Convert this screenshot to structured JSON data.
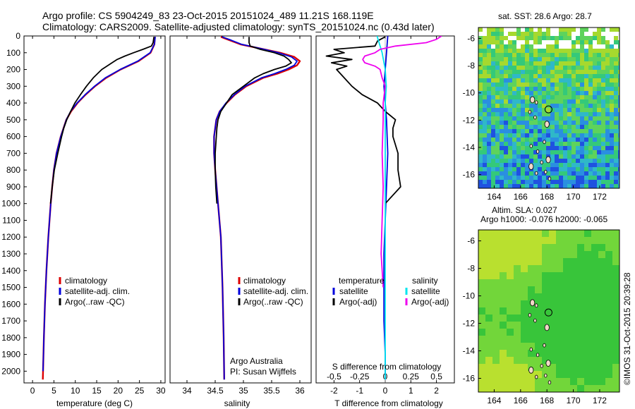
{
  "title_line1": "Argo profile: CS 5904249_83 23-Oct-2015 20151024_489 11.21S 168.119E",
  "title_line2": "Climatology: CARS2009. Satellite-adjusted climatology: synTS_20151024.nc (0.43d later)",
  "credit_line1": "Argo Australia",
  "credit_line2": "PI: Susan Wijffels",
  "watermark": "©IMOS 31-Oct-2015 20:39:28",
  "colors": {
    "climatology": "#dd0000",
    "satellite": "#0000dd",
    "argo": "#000000",
    "sat_salinity": "#00e5ee",
    "argo_adj_salinity": "#ee00ee"
  },
  "chart_data": [
    {
      "type": "line",
      "id": "temperature",
      "xlabel": "temperature (deg C)",
      "ylabel": "",
      "xlim": [
        -2,
        31
      ],
      "ylim": [
        0,
        2070
      ],
      "y_inverted": true,
      "xticks": [
        0,
        5,
        10,
        15,
        20,
        25,
        30
      ],
      "yticks": [
        0,
        100,
        200,
        300,
        400,
        500,
        600,
        700,
        800,
        900,
        1000,
        1100,
        1200,
        1300,
        1400,
        1500,
        1600,
        1700,
        1800,
        1900,
        2000
      ],
      "legend": [
        "climatology",
        "satellite-adj. clim.",
        "Argo(..raw -QC)"
      ],
      "series": [
        {
          "name": "climatology",
          "depth": [
            5,
            50,
            100,
            150,
            200,
            250,
            300,
            350,
            400,
            450,
            500,
            600,
            700,
            800,
            900,
            1000,
            1200,
            1400,
            1600,
            1800,
            2000,
            2050
          ],
          "values": [
            28.6,
            28.5,
            27.6,
            24.8,
            20.6,
            17.2,
            14.6,
            12.4,
            10.5,
            9.0,
            7.9,
            6.6,
            5.6,
            5.0,
            4.6,
            4.25,
            3.7,
            3.25,
            2.9,
            2.65,
            2.45,
            2.4
          ]
        },
        {
          "name": "satellite-adj. clim.",
          "depth": [
            5,
            50,
            100,
            150,
            200,
            250,
            300,
            350,
            400,
            450,
            500,
            600,
            700,
            800,
            900,
            1000,
            1200,
            1400,
            1600,
            1800,
            2000
          ],
          "values": [
            28.7,
            28.5,
            27.5,
            24.6,
            20.5,
            17.0,
            14.5,
            12.3,
            10.4,
            8.9,
            7.9,
            6.6,
            5.6,
            5.0,
            4.6,
            4.25,
            3.7,
            3.25,
            2.9,
            2.65,
            2.45
          ]
        },
        {
          "name": "Argo(..raw -QC)",
          "depth": [
            5,
            40,
            60,
            80,
            100,
            120,
            140,
            160,
            180,
            200,
            250,
            300,
            350,
            400,
            450,
            500,
            550,
            600,
            700,
            800,
            900,
            1000
          ],
          "values": [
            28.4,
            28.2,
            27.8,
            25.8,
            23.6,
            21.6,
            19.8,
            18.6,
            17.4,
            16.2,
            14.2,
            12.6,
            11.2,
            9.9,
            8.9,
            8.0,
            7.3,
            6.8,
            5.9,
            5.1,
            4.6,
            4.2
          ]
        }
      ]
    },
    {
      "type": "line",
      "id": "salinity",
      "xlabel": "salinity",
      "ylabel": "",
      "xlim": [
        33.7,
        36.2
      ],
      "ylim": [
        0,
        2070
      ],
      "y_inverted": true,
      "xticks": [
        34,
        34.5,
        35,
        35.5,
        36
      ],
      "legend": [
        "climatology",
        "satellite-adj. clim.",
        "Argo(..raw -QC)"
      ],
      "series": [
        {
          "name": "climatology",
          "depth": [
            5,
            25,
            50,
            75,
            100,
            125,
            150,
            175,
            200,
            225,
            250,
            300,
            350,
            400,
            450,
            500,
            600,
            700,
            800,
            1000,
            1200,
            1500,
            1800,
            2050
          ],
          "values": [
            34.6,
            34.75,
            34.95,
            35.3,
            35.65,
            35.9,
            36.0,
            35.95,
            35.8,
            35.6,
            35.35,
            35.05,
            34.85,
            34.7,
            34.58,
            34.52,
            34.48,
            34.48,
            34.5,
            34.55,
            34.6,
            34.63,
            34.65,
            34.66
          ]
        },
        {
          "name": "satellite-adj. clim.",
          "depth": [
            5,
            25,
            50,
            75,
            100,
            125,
            150,
            175,
            200,
            225,
            250,
            300,
            350,
            400,
            450,
            500,
            600,
            700,
            800,
            1000,
            1200,
            1500,
            1800,
            2050
          ],
          "values": [
            34.62,
            34.78,
            34.97,
            35.3,
            35.62,
            35.85,
            35.95,
            35.9,
            35.75,
            35.55,
            35.32,
            35.03,
            34.84,
            34.69,
            34.58,
            34.52,
            34.48,
            34.48,
            34.5,
            34.55,
            34.6,
            34.63,
            34.65,
            34.66
          ]
        },
        {
          "name": "Argo(..raw -QC)",
          "depth": [
            5,
            40,
            60,
            80,
            100,
            120,
            140,
            160,
            180,
            200,
            225,
            250,
            275,
            300,
            350,
            400,
            450,
            500,
            550,
            600,
            700,
            800,
            900,
            1000
          ],
          "values": [
            35.1,
            35.1,
            35.12,
            35.3,
            35.55,
            35.72,
            35.8,
            35.85,
            35.75,
            35.55,
            35.35,
            35.2,
            35.1,
            35.0,
            34.8,
            34.7,
            34.6,
            34.55,
            34.53,
            34.52,
            34.5,
            34.5,
            34.51,
            34.53
          ]
        }
      ]
    },
    {
      "type": "line",
      "id": "differences",
      "xlabel": "T difference from climatology",
      "top_xlabel": "S difference from climatology",
      "xlim": [
        -2.7,
        2.7
      ],
      "ylim": [
        0,
        2070
      ],
      "y_inverted": true,
      "xticks": [
        -2,
        -1,
        0,
        1,
        2
      ],
      "top_xticks": [
        "-0.5",
        "-0.25",
        "0",
        "0.25",
        "0.5"
      ],
      "legend_temperature_header": "temperature",
      "legend_salinity_header": "salinity",
      "legend": [
        "satellite",
        "Argo(-adj)",
        "satellite",
        "Argo(-adj)"
      ],
      "series": [
        {
          "name": "satellite",
          "variable": "temperature",
          "depth": [
            0,
            100,
            200,
            300,
            400,
            500,
            700,
            900,
            1100,
            1300,
            1500,
            1700,
            1900,
            2050
          ],
          "values": [
            0.1,
            0.05,
            0.0,
            -0.05,
            0.0,
            0.05,
            0.1,
            0.05,
            0.0,
            -0.05,
            -0.05,
            -0.05,
            0.0,
            0.0
          ]
        },
        {
          "name": "Argo(-adj)",
          "variable": "temperature",
          "depth": [
            5,
            30,
            60,
            80,
            100,
            120,
            140,
            160,
            180,
            200,
            250,
            300,
            350,
            400,
            450,
            500,
            550,
            600,
            700,
            800,
            900,
            1000
          ],
          "values": [
            0.0,
            -0.3,
            -0.4,
            -2.0,
            -1.6,
            -2.3,
            -1.3,
            -2.1,
            -1.5,
            -1.9,
            -1.6,
            -1.3,
            -0.9,
            -0.3,
            0.0,
            0.4,
            0.3,
            0.3,
            0.5,
            0.5,
            0.6,
            0.0
          ]
        },
        {
          "name": "satellite",
          "variable": "salinity",
          "depth": [
            0,
            100,
            200,
            300,
            400,
            500,
            700,
            900,
            1100,
            1300,
            1500,
            1700,
            1900,
            2050
          ],
          "values": [
            -0.08,
            -0.03,
            0.0,
            0.01,
            0.0,
            0.0,
            0.0,
            0.0,
            0.0,
            0.0,
            0.0,
            0.0,
            0.0,
            0.0
          ]
        },
        {
          "name": "Argo(-adj)",
          "variable": "salinity",
          "depth": [
            0,
            20,
            40,
            60,
            80,
            100,
            120,
            140,
            160,
            180,
            200,
            250,
            300,
            400,
            500,
            700,
            900,
            1100,
            1300,
            1500
          ],
          "values": [
            0.55,
            0.5,
            0.4,
            0.1,
            -0.05,
            -0.1,
            -0.2,
            -0.22,
            -0.2,
            -0.1,
            -0.05,
            -0.03,
            0.0,
            -0.02,
            -0.02,
            -0.03,
            -0.02,
            -0.03,
            -0.04,
            -0.02
          ]
        }
      ]
    },
    {
      "type": "heatmap",
      "id": "sst_map",
      "title": "sat. SST: 28.6  Argo: 28.7",
      "xlim": [
        162.8,
        173.5
      ],
      "ylim": [
        -17,
        -5.2
      ],
      "xticks": [
        164,
        166,
        168,
        170,
        172
      ],
      "yticks": [
        -6,
        -8,
        -10,
        -12,
        -14,
        -16
      ],
      "float_position": {
        "lon": 168.119,
        "lat": -11.21
      }
    },
    {
      "type": "heatmap",
      "id": "sla_map",
      "title": "Altim. SLA: 0.027",
      "subtitle": "Argo h1000: -0.076 h2000: -0.065",
      "xlim": [
        162.8,
        173.5
      ],
      "ylim": [
        -17,
        -5.2
      ],
      "xticks": [
        164,
        166,
        168,
        170,
        172
      ],
      "yticks": [
        -6,
        -8,
        -10,
        -12,
        -14,
        -16
      ],
      "float_position": {
        "lon": 168.119,
        "lat": -11.21
      }
    }
  ]
}
